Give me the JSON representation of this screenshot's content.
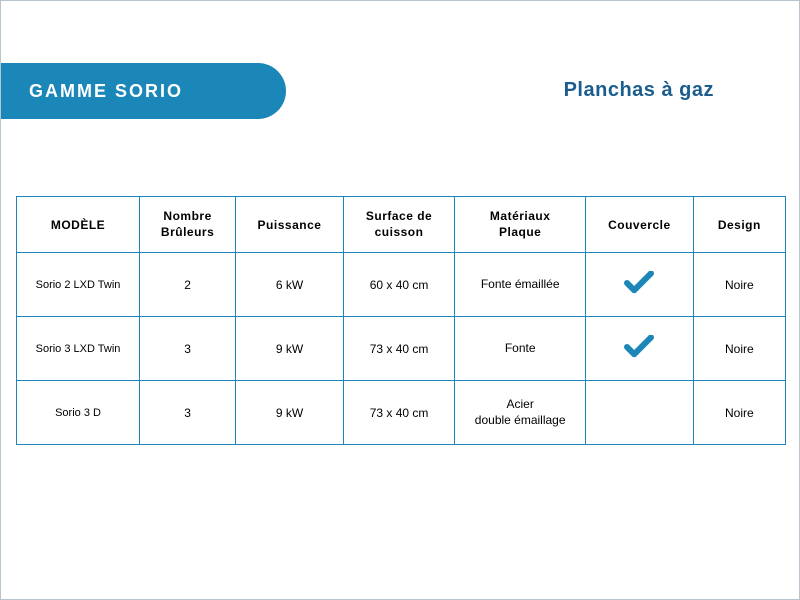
{
  "header": {
    "pill_text": "GAMME SORIO",
    "subtitle": "Planchas à gaz"
  },
  "colors": {
    "brand_blue": "#1b87b8",
    "dark_blue": "#1b5d8f",
    "check_blue": "#1b87b8",
    "border": "#1b87b8"
  },
  "table": {
    "columns": [
      "MODÈLE",
      "Nombre\nBrûleurs",
      "Puissance",
      "Surface de\ncuisson",
      "Matériaux\nPlaque",
      "Couvercle",
      "Design"
    ],
    "rows": [
      {
        "model": "Sorio 2 LXD Twin",
        "burners": "2",
        "power": "6 kW",
        "surface": "60 x 40 cm",
        "material": "Fonte émaillée",
        "cover_check": true,
        "design": "Noire"
      },
      {
        "model": "Sorio 3 LXD Twin",
        "burners": "3",
        "power": "9 kW",
        "surface": "73 x 40 cm",
        "material": "Fonte",
        "cover_check": true,
        "design": "Noire"
      },
      {
        "model": "Sorio 3 D",
        "burners": "3",
        "power": "9 kW",
        "surface": "73 x 40 cm",
        "material": "Acier\ndouble émaillage",
        "cover_check": false,
        "design": "Noire"
      }
    ]
  }
}
